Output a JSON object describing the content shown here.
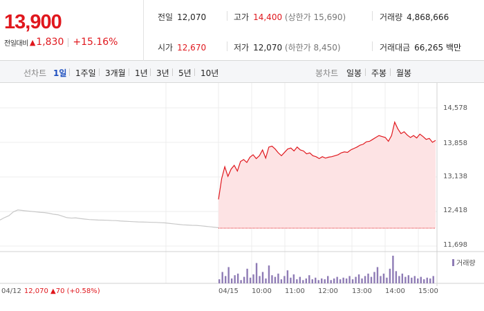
{
  "quote": {
    "price": "13,900",
    "change_label": "전일대비",
    "change_icon": "up-triangle-icon",
    "change_amount": "1,830",
    "change_pct": "+15.16%",
    "prev_close_label": "전일",
    "prev_close": "12,070",
    "high_label": "고가",
    "high": "14,400",
    "upper_limit": "(상한가 15,690)",
    "volume_label": "거래량",
    "volume": "4,868,666",
    "open_label": "시가",
    "open": "12,670",
    "low_label": "저가",
    "low": "12,070",
    "lower_limit": "(하한가 8,450)",
    "turnover_label": "거래대금",
    "turnover": "66,265 백만"
  },
  "tabs": {
    "line_label": "선차트",
    "periods": [
      "1일",
      "1주일",
      "3개월",
      "1년",
      "3년",
      "5년",
      "10년"
    ],
    "active_period": "1일",
    "candle_label": "봉차트",
    "candle_periods": [
      "일봉",
      "주봉",
      "월봉"
    ]
  },
  "chart_data": {
    "type": "line",
    "y_ticks": [
      "14,578",
      "13,858",
      "13,138",
      "12,418",
      "11,698"
    ],
    "ylim": [
      11698,
      14578
    ],
    "x_ticks": [
      "04/15",
      "10:00",
      "11:00",
      "12:00",
      "13:00",
      "14:00",
      "15:00"
    ],
    "prev_day_label": "04/12",
    "prev_day_close": "12,070",
    "prev_day_change_icon": "up-triangle-icon",
    "prev_day_change": "70",
    "prev_day_change_pct": "(+0.58%)",
    "volume_legend": "거래량",
    "colors": {
      "up": "#e0171d",
      "area": "#fde3e4",
      "prev_line": "#c8c8c8",
      "volume": "#8e7bb5",
      "grid": "#ececec"
    },
    "prev_day_series": [
      12240,
      12290,
      12330,
      12410,
      12450,
      12440,
      12430,
      12420,
      12410,
      12400,
      12395,
      12380,
      12360,
      12350,
      12320,
      12290,
      12280,
      12285,
      12270,
      12260,
      12250,
      12245,
      12240,
      12238,
      12235,
      12230,
      12228,
      12220,
      12215,
      12210,
      12205,
      12200,
      12198,
      12196,
      12192,
      12190,
      12185,
      12180,
      12170,
      12160,
      12150,
      12140,
      12135,
      12130,
      12128,
      12120,
      12110,
      12100,
      12090,
      12080
    ],
    "today_series": [
      12670,
      13100,
      13350,
      13150,
      13300,
      13380,
      13260,
      13460,
      13500,
      13440,
      13550,
      13600,
      13520,
      13580,
      13700,
      13530,
      13760,
      13780,
      13720,
      13640,
      13580,
      13650,
      13720,
      13740,
      13680,
      13760,
      13700,
      13680,
      13620,
      13640,
      13580,
      13560,
      13520,
      13560,
      13530,
      13550,
      13560,
      13580,
      13600,
      13640,
      13660,
      13650,
      13700,
      13730,
      13760,
      13800,
      13820,
      13870,
      13880,
      13920,
      13960,
      14000,
      13980,
      13960,
      13880,
      14000,
      14280,
      14140,
      14040,
      14080,
      14010,
      13960,
      14000,
      13950,
      14030,
      13980,
      13920,
      13940,
      13860,
      13900
    ],
    "volume_series": [
      5,
      14,
      9,
      20,
      6,
      10,
      12,
      4,
      8,
      18,
      7,
      11,
      25,
      9,
      14,
      6,
      22,
      10,
      8,
      12,
      5,
      9,
      16,
      7,
      11,
      5,
      8,
      4,
      6,
      10,
      5,
      7,
      4,
      6,
      5,
      9,
      4,
      6,
      8,
      5,
      7,
      6,
      9,
      5,
      8,
      11,
      6,
      9,
      12,
      8,
      14,
      20,
      9,
      12,
      7,
      18,
      34,
      15,
      9,
      12,
      8,
      10,
      7,
      9,
      6,
      8,
      5,
      7,
      6,
      9
    ]
  }
}
